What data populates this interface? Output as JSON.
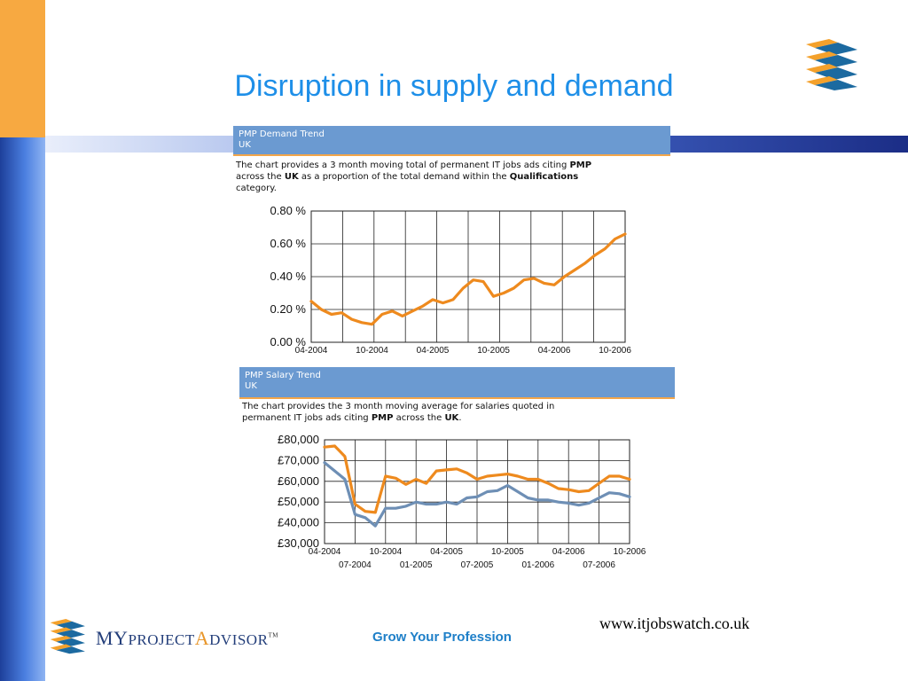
{
  "slide": {
    "title": "Disruption in supply and demand",
    "footer_url": "www.itjobswatch.co.uk",
    "slogan": "Grow Your Profession",
    "brand": {
      "my": "MY",
      "project": "PROJECT",
      "a": "A",
      "dvisor": "DVISOR",
      "tm": "TM"
    }
  },
  "colors": {
    "orange": "#ee8a1e",
    "blue": "#6e8fb5",
    "header": "#6b9ad1",
    "title": "#1e8fe8"
  },
  "panels": {
    "demand": {
      "header_line1": "PMP Demand Trend",
      "header_line2": "UK",
      "desc_line1": "The chart provides a 3 month moving total of permanent IT jobs ads citing ",
      "desc_line1_b": "PMP",
      "desc_line2a": "across the ",
      "desc_line2_b": "UK",
      "desc_line2c": " as a proportion of the total demand within the ",
      "desc_line2_b2": "Qualifications",
      "desc_line3": "category."
    },
    "salary": {
      "header_line1": "PMP Salary Trend",
      "header_line2": "UK",
      "desc_line1": "The chart provides the 3 month moving average for salaries quoted in",
      "desc_line2a": "permanent IT jobs ads citing ",
      "desc_line2_b": "PMP",
      "desc_line2c": " across the ",
      "desc_line2_b2": "UK",
      "desc_line2d": "."
    }
  },
  "chart_data": [
    {
      "type": "line",
      "title": "PMP Demand Trend",
      "ylim": [
        0,
        0.8
      ],
      "yticks": [
        "0.80 %",
        "0.60 %",
        "0.40 %",
        "0.20 %",
        "0.00 %"
      ],
      "ytick_values": [
        0.8,
        0.6,
        0.4,
        0.2,
        0
      ],
      "xticks": [
        "04-2004",
        "10-2004",
        "04-2005",
        "10-2005",
        "04-2006",
        "10-2006"
      ],
      "xtick_index": [
        0,
        6,
        12,
        18,
        24,
        30
      ],
      "grid": true,
      "series": [
        {
          "color": "#ee8a1e",
          "values": [
            0.25,
            0.2,
            0.17,
            0.18,
            0.14,
            0.12,
            0.11,
            0.17,
            0.19,
            0.16,
            0.19,
            0.22,
            0.26,
            0.24,
            0.26,
            0.33,
            0.38,
            0.37,
            0.28,
            0.3,
            0.33,
            0.38,
            0.39,
            0.36,
            0.35,
            0.4,
            0.44,
            0.48,
            0.53,
            0.57,
            0.63,
            0.66
          ]
        }
      ]
    },
    {
      "type": "line",
      "title": "PMP Salary Trend",
      "ylim": [
        30000,
        80000
      ],
      "yticks": [
        "£80,000",
        "£70,000",
        "£60,000",
        "£50,000",
        "£40,000",
        "£30,000"
      ],
      "ytick_values": [
        80000,
        70000,
        60000,
        50000,
        40000,
        30000
      ],
      "xticks_top": [
        "04-2004",
        "10-2004",
        "04-2005",
        "10-2005",
        "04-2006",
        "10-2006"
      ],
      "xticks_top_index": [
        0,
        6,
        12,
        18,
        24,
        30
      ],
      "xticks_bottom": [
        "07-2004",
        "01-2005",
        "07-2005",
        "01-2006",
        "07-2006"
      ],
      "xticks_bottom_index": [
        3,
        9,
        15,
        21,
        27
      ],
      "grid": true,
      "series": [
        {
          "color": "#ee8a1e",
          "values": [
            76500,
            77000,
            72000,
            49000,
            45500,
            45000,
            62500,
            61500,
            58500,
            61000,
            59000,
            65000,
            65500,
            66000,
            64000,
            61000,
            62500,
            63000,
            63500,
            62500,
            61000,
            61000,
            59000,
            56500,
            56000,
            55000,
            55500,
            59000,
            62500,
            62500,
            61000
          ]
        },
        {
          "color": "#6e8fb5",
          "values": [
            69000,
            65000,
            61000,
            44000,
            42500,
            38500,
            47000,
            47000,
            48000,
            50000,
            49000,
            49000,
            50000,
            49000,
            52000,
            52500,
            55000,
            55500,
            58000,
            55000,
            52000,
            51000,
            51000,
            50000,
            49500,
            48500,
            49500,
            52000,
            54500,
            54000,
            52500
          ]
        }
      ]
    }
  ]
}
